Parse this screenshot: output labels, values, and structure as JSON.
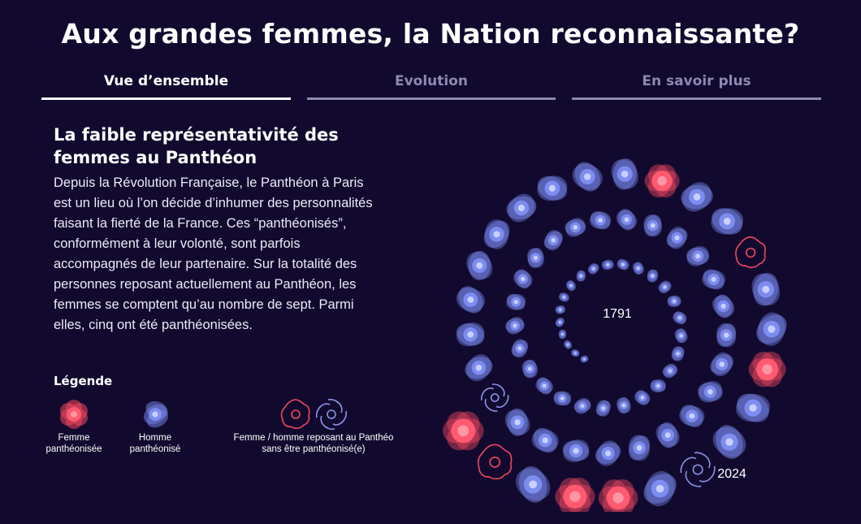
{
  "page": {
    "title": "Aux grandes femmes, la Nation reconnaissante?"
  },
  "tabs": [
    {
      "label": "Vue d’ensemble",
      "active": true
    },
    {
      "label": "Evolution",
      "active": false
    },
    {
      "label": "En savoir plus",
      "active": false
    }
  ],
  "article": {
    "heading": "La faible représentativité des femmes au Panthéon",
    "paragraph": "Depuis la Révolution Française, le Panthéon à Paris est un lieu où l’on décide d’inhumer des personnalités faisant la fierté de la France. Ces “panthéonisés”, conformément à leur volonté, sont parfois accompagnés de leur partenaire. Sur la totalité des personnes reposant actuellement au Panthéon, les femmes se comptent qu’au nombre de sept. Parmi elles, cinq ont été panthéonisées."
  },
  "legend": {
    "title": "Légende",
    "items": [
      {
        "label": "Femme\npanthéonisée",
        "icon": "woman-pantheonized-icon",
        "color": "#f2475f"
      },
      {
        "label": "Homme\npanthéonisé",
        "icon": "man-pantheonized-icon",
        "color": "#6f7fe0"
      },
      {
        "label": "Femme / homme reposant au Panthéo\nsans être panthéonisé(e)",
        "icon": "buried-not-pantheonized-icons",
        "colors": [
          "#f2475f",
          "#8a93e8"
        ]
      }
    ]
  },
  "colors": {
    "background": "#120a2e",
    "woman": "#f2475f",
    "man": "#6f7fe0",
    "partner_outline_woman": "#f2475f",
    "partner_outline_man": "#8a93e8"
  },
  "chart_data": {
    "type": "spiral",
    "start_label": "1791",
    "end_label": "2024",
    "sequence_order": "inner-to-outer",
    "categories": [
      "Homme panthéonisé",
      "Femme panthéonisée",
      "Femme reposant sans être panthéonisée",
      "Homme reposant sans être panthéonisé"
    ],
    "counts": {
      "Homme panthéonisé": 68,
      "Femme panthéonisée": 5,
      "Femme reposant sans être panthéonisée": 2,
      "Homme reposant sans être panthéonisé": 2
    },
    "sequence": [
      "H",
      "H",
      "H",
      "H",
      "H",
      "H",
      "H",
      "H",
      "H",
      "H",
      "H",
      "H",
      "H",
      "H",
      "H",
      "H",
      "H",
      "H",
      "H",
      "H",
      "H",
      "H",
      "H",
      "H",
      "H",
      "H",
      "H",
      "H",
      "H",
      "H",
      "H",
      "H",
      "H",
      "H",
      "H",
      "H",
      "H",
      "H",
      "H",
      "H",
      "H",
      "H",
      "H",
      "H",
      "H",
      "H",
      "H",
      "H",
      "H",
      "H",
      "H",
      "H",
      "PH",
      "H",
      "H",
      "H",
      "H",
      "H",
      "H",
      "H",
      "H",
      "H",
      "F",
      "H",
      "H",
      "PF",
      "H",
      "H",
      "F",
      "H",
      "H",
      "PH",
      "H",
      "F",
      "F",
      "H",
      "PF",
      "F"
    ]
  }
}
